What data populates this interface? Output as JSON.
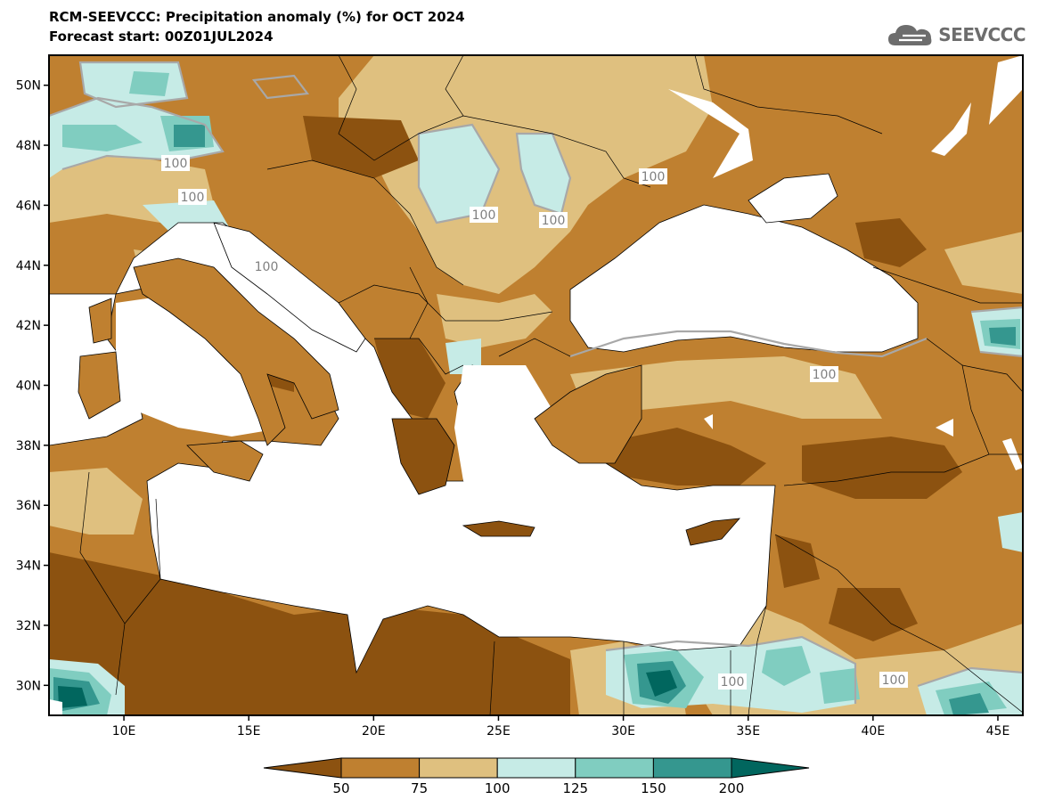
{
  "header": {
    "title": "RCM-SEEVCCC: Precipitation anomaly (%) for OCT 2024",
    "subtitle": "Forecast start: 00Z01JUL2024"
  },
  "logo": {
    "text": "SEEVCCC",
    "icon": "cloud-icon"
  },
  "map": {
    "lon_range": [
      7,
      46
    ],
    "lat_range": [
      29,
      51
    ],
    "lon_ticks": [
      "10E",
      "15E",
      "20E",
      "25E",
      "30E",
      "35E",
      "40E",
      "45E"
    ],
    "lat_ticks": [
      "30N",
      "32N",
      "34N",
      "36N",
      "38N",
      "40N",
      "42N",
      "44N",
      "46N",
      "48N",
      "50N"
    ],
    "contour_labels": [
      "100",
      "100",
      "100",
      "100",
      "100",
      "100",
      "100",
      "100",
      "100"
    ]
  },
  "colorbar": {
    "levels": [
      "50",
      "75",
      "100",
      "125",
      "150",
      "200"
    ],
    "colors": [
      "#8c5210",
      "#bf8030",
      "#dfc07f",
      "#c6ebe6",
      "#80cdc0",
      "#35978f",
      "#01665e"
    ]
  }
}
